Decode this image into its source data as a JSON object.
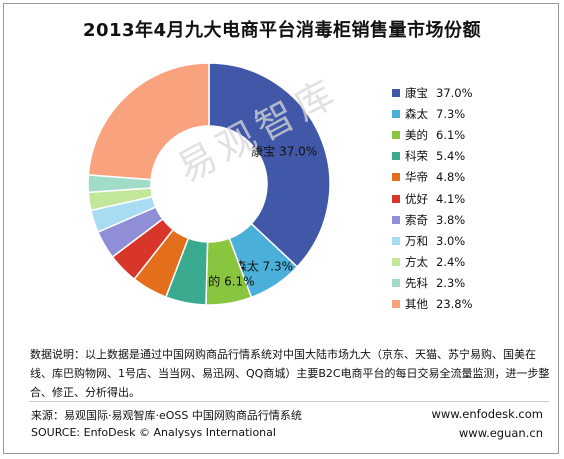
{
  "title": "2013年4月九大电商平台消毒柜销售量市场份额",
  "watermark": "易观智库",
  "chart_data": {
    "type": "pie",
    "title": "2013年4月九大电商平台消毒柜销售量市场份额",
    "slices": [
      {
        "name": "康宝",
        "value": 37.0,
        "label": "37.0%",
        "color": "#4158a8"
      },
      {
        "name": "森太",
        "value": 7.3,
        "label": "7.3%",
        "color": "#4ab0d9"
      },
      {
        "name": "美的",
        "value": 6.1,
        "label": "6.1%",
        "color": "#8ac53f"
      },
      {
        "name": "科荣",
        "value": 5.4,
        "label": "5.4%",
        "color": "#3aaa8f"
      },
      {
        "name": "华帝",
        "value": 4.8,
        "label": "4.8%",
        "color": "#e36f1c"
      },
      {
        "name": "优好",
        "value": 4.1,
        "label": "4.1%",
        "color": "#d8352b"
      },
      {
        "name": "索奇",
        "value": 3.8,
        "label": "3.8%",
        "color": "#8f8ed6"
      },
      {
        "name": "万和",
        "value": 3.0,
        "label": "3.0%",
        "color": "#a8dcf3"
      },
      {
        "name": "方太",
        "value": 2.4,
        "label": "2.4%",
        "color": "#c3e79a"
      },
      {
        "name": "先科",
        "value": 2.3,
        "label": "2.3%",
        "color": "#a1dcc6"
      },
      {
        "name": "其他",
        "value": 23.8,
        "label": "23.8%",
        "color": "#f9a37e"
      }
    ],
    "slice_labels_shown": [
      "康宝",
      "森太",
      "美的"
    ],
    "legend_position": "right"
  },
  "note": "数据说明：以上数据是通过中国网购商品行情系统对中国大陆市场九大（京东、天猫、苏宁易购、国美在线、库巴购物网、1号店、当当网、易迅网、QQ商城）主要B2C电商平台的每日交易全流量监测，进一步整合、修正、分析得出。",
  "source_cn": "来源：易观国际·易观智库·eOSS 中国网购商品行情系统",
  "source_en": "SOURCE: EnfoDesk © Analysys International",
  "url1": "www.enfodesk.com",
  "url2": "www.eguan.cn"
}
